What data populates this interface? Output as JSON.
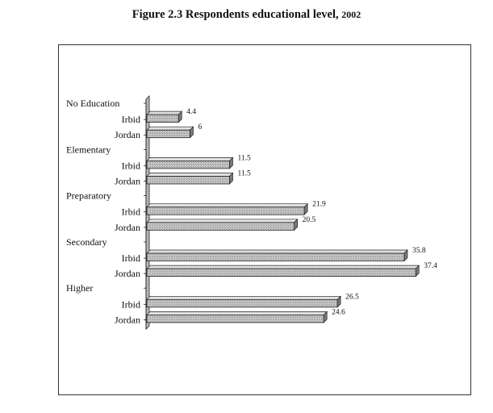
{
  "title": "Figure 2.3 Respondents educational level,",
  "title_year": "2002",
  "chart_data": {
    "type": "bar",
    "orientation": "horizontal",
    "title": "Figure 2.3 Respondents educational level, 2002",
    "xlim": [
      0,
      40
    ],
    "grid": false,
    "legend": "none",
    "series_names": [
      "Irbid",
      "Jordan"
    ],
    "categories": [
      {
        "name": "No Education",
        "series": [
          {
            "name": "Irbid",
            "value": 4.4,
            "label": "4.4"
          },
          {
            "name": "Jordan",
            "value": 6,
            "label": "6"
          }
        ]
      },
      {
        "name": "Elementary",
        "series": [
          {
            "name": "Irbid",
            "value": 11.5,
            "label": "11.5"
          },
          {
            "name": "Jordan",
            "value": 11.5,
            "label": "11.5"
          }
        ]
      },
      {
        "name": "Preparatory",
        "series": [
          {
            "name": "Irbid",
            "value": 21.9,
            "label": "21.9"
          },
          {
            "name": "Jordan",
            "value": 20.5,
            "label": "20.5"
          }
        ]
      },
      {
        "name": "Secondary",
        "series": [
          {
            "name": "Irbid",
            "value": 35.8,
            "label": "35.8"
          },
          {
            "name": "Jordan",
            "value": 37.4,
            "label": "37.4"
          }
        ]
      },
      {
        "name": "Higher",
        "series": [
          {
            "name": "Irbid",
            "value": 26.5,
            "label": "26.5"
          },
          {
            "name": "Jordan",
            "value": 24.6,
            "label": "24.6"
          }
        ]
      }
    ],
    "colors": {
      "bar_face": "#bdbdbd",
      "bar_edge": "#222222",
      "bar_side": "#7a7a7a",
      "bar_top": "#e2e2e2"
    }
  }
}
